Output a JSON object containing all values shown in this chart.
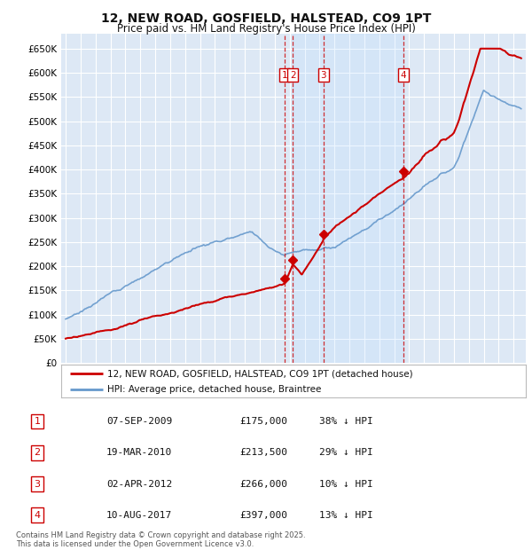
{
  "title": "12, NEW ROAD, GOSFIELD, HALSTEAD, CO9 1PT",
  "subtitle": "Price paid vs. HM Land Registry's House Price Index (HPI)",
  "ylabel_ticks": [
    "£0",
    "£50K",
    "£100K",
    "£150K",
    "£200K",
    "£250K",
    "£300K",
    "£350K",
    "£400K",
    "£450K",
    "£500K",
    "£550K",
    "£600K",
    "£650K"
  ],
  "ytick_vals": [
    0,
    50000,
    100000,
    150000,
    200000,
    250000,
    300000,
    350000,
    400000,
    450000,
    500000,
    550000,
    600000,
    650000
  ],
  "ylim": [
    0,
    680000
  ],
  "xlim_start": 1994.7,
  "xlim_end": 2025.8,
  "background_color": "#ffffff",
  "plot_bg_color": "#dde8f5",
  "grid_color": "#ffffff",
  "hpi_color": "#6699cc",
  "price_color": "#cc0000",
  "shade_color": "#ddeeff",
  "sales": [
    {
      "date_num": 2009.68,
      "price": 175000,
      "label": "1"
    },
    {
      "date_num": 2010.21,
      "price": 213500,
      "label": "2"
    },
    {
      "date_num": 2012.25,
      "price": 266000,
      "label": "3"
    },
    {
      "date_num": 2017.6,
      "price": 397000,
      "label": "4"
    }
  ],
  "sale_table": [
    {
      "num": "1",
      "date": "07-SEP-2009",
      "price": "£175,000",
      "note": "38% ↓ HPI"
    },
    {
      "num": "2",
      "date": "19-MAR-2010",
      "price": "£213,500",
      "note": "29% ↓ HPI"
    },
    {
      "num": "3",
      "date": "02-APR-2012",
      "price": "£266,000",
      "note": "10% ↓ HPI"
    },
    {
      "num": "4",
      "date": "10-AUG-2017",
      "price": "£397,000",
      "note": "13% ↓ HPI"
    }
  ],
  "legend_entries": [
    "12, NEW ROAD, GOSFIELD, HALSTEAD, CO9 1PT (detached house)",
    "HPI: Average price, detached house, Braintree"
  ],
  "footer": "Contains HM Land Registry data © Crown copyright and database right 2025.\nThis data is licensed under the Open Government Licence v3.0."
}
